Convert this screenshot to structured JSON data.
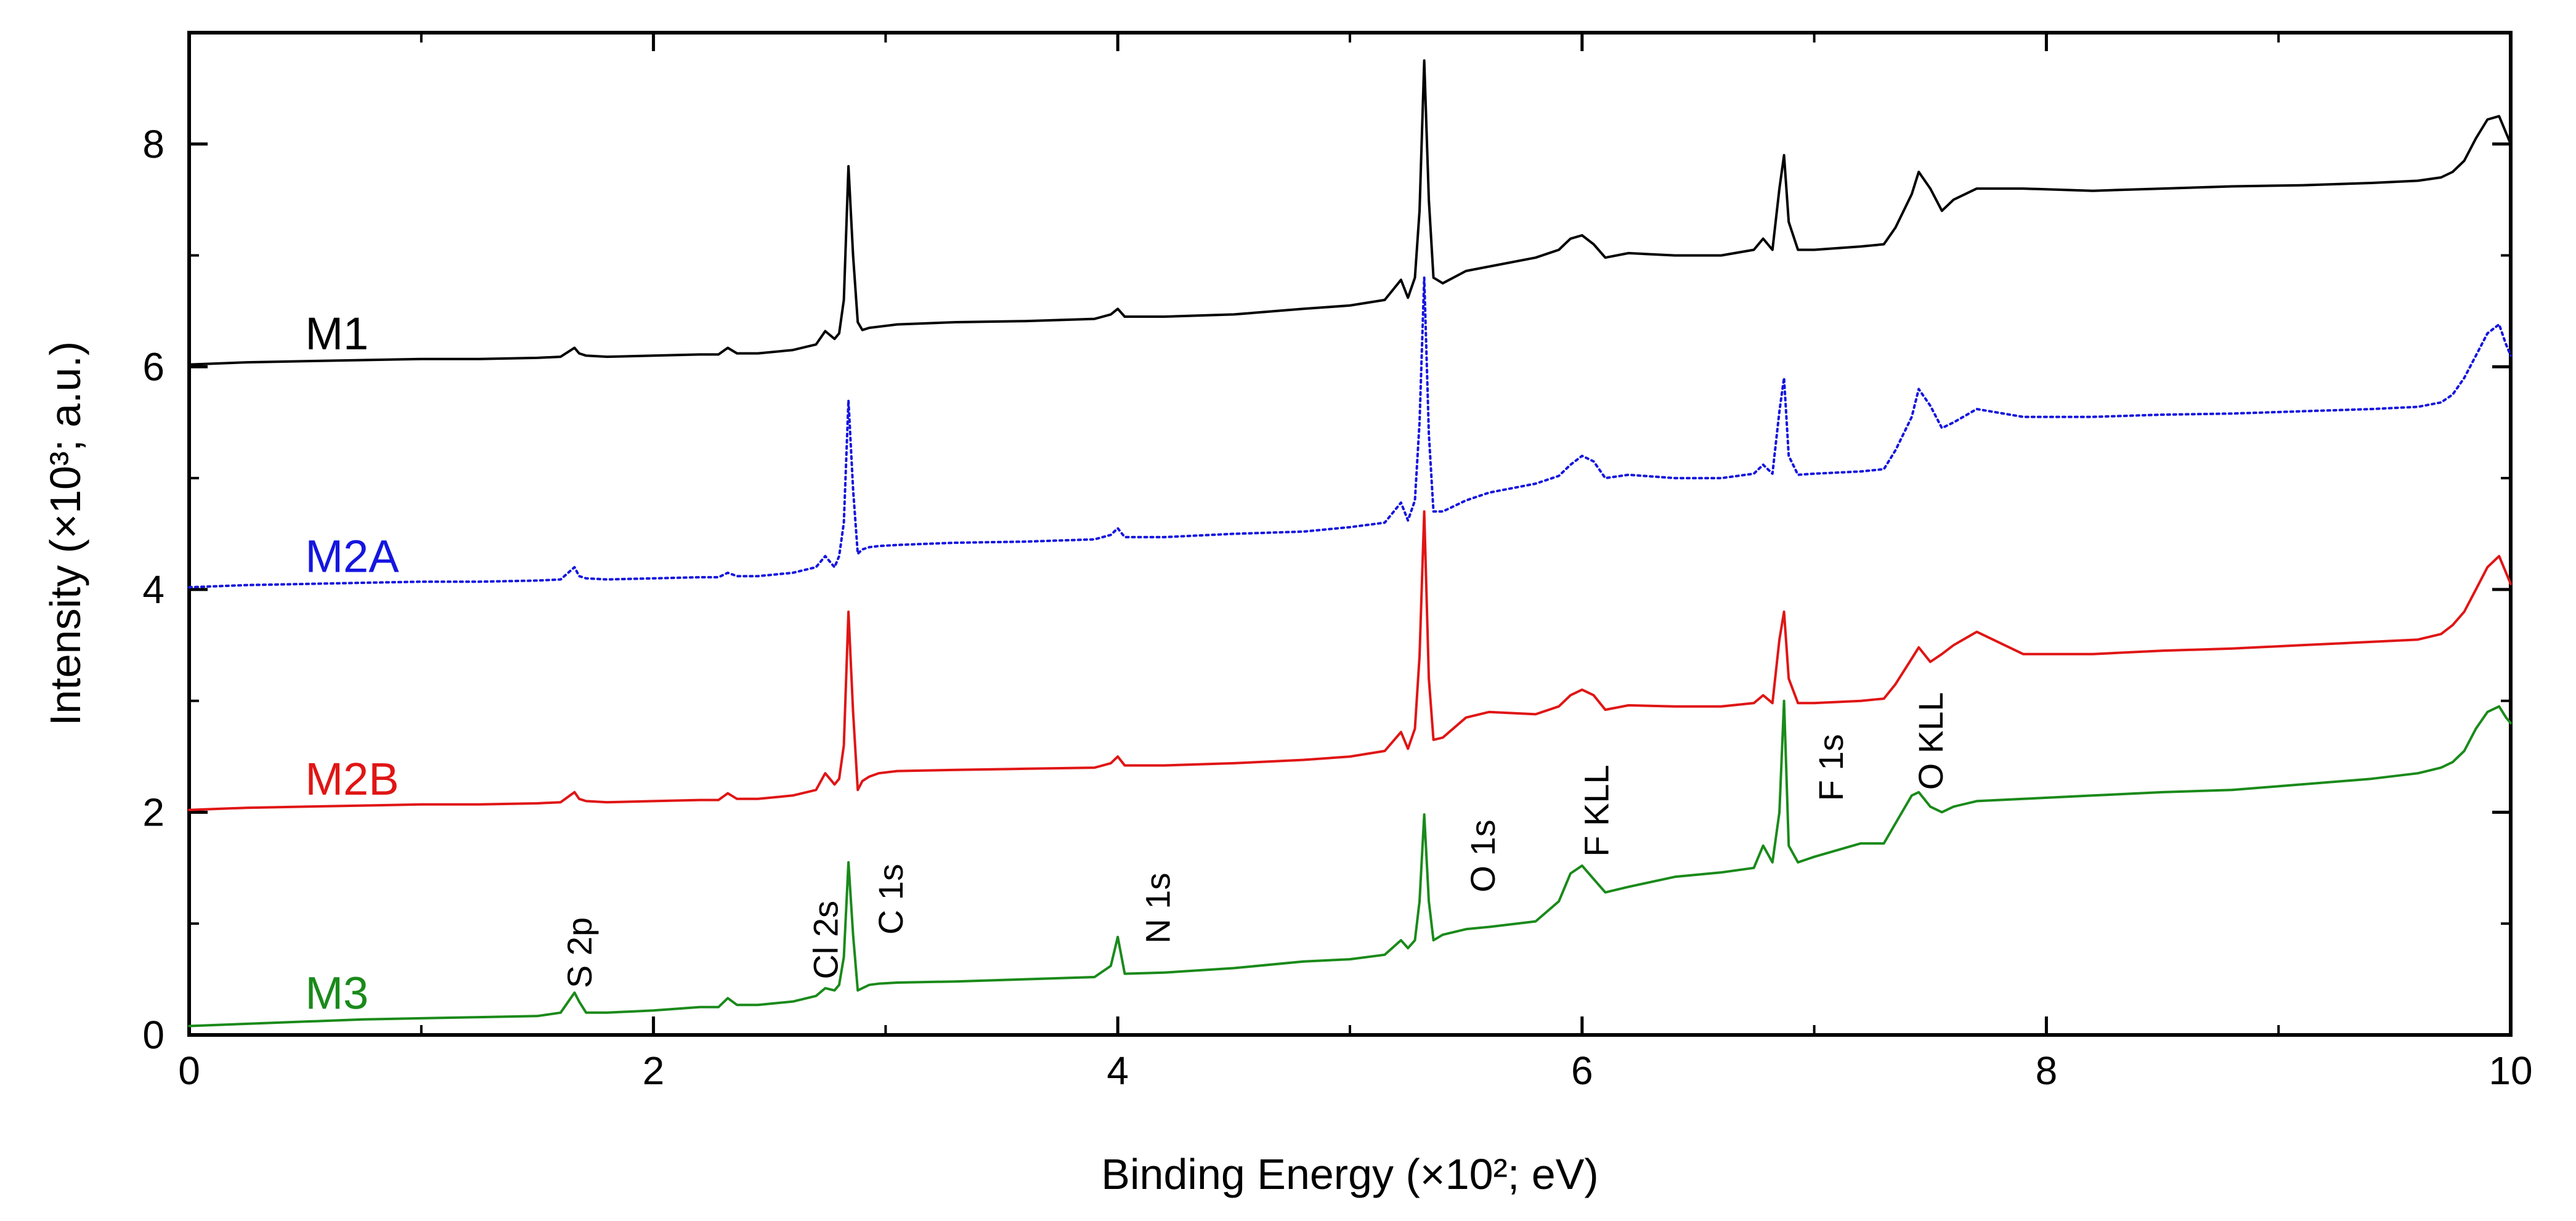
{
  "chart_data": {
    "type": "line",
    "xlabel": "Binding Energy (×10²; eV)",
    "ylabel": "Intensity (×10³; a.u.)",
    "xlim": [
      0,
      10
    ],
    "ylim": [
      0,
      9
    ],
    "xticks": [
      0,
      2,
      4,
      6,
      8,
      10
    ],
    "yticks": [
      0,
      2,
      4,
      6,
      8
    ],
    "grid": false,
    "series": [
      {
        "name": "M1",
        "color": "#000000",
        "style": "solid",
        "label_at": [
          0.5,
          6.3
        ],
        "x": [
          0.0,
          0.25,
          0.5,
          0.75,
          1.0,
          1.25,
          1.5,
          1.6,
          1.66,
          1.68,
          1.71,
          1.8,
          2.0,
          2.2,
          2.28,
          2.32,
          2.36,
          2.45,
          2.6,
          2.7,
          2.74,
          2.78,
          2.8,
          2.82,
          2.84,
          2.86,
          2.88,
          2.9,
          2.93,
          2.97,
          3.05,
          3.3,
          3.6,
          3.9,
          3.97,
          4.0,
          4.03,
          4.2,
          4.5,
          4.8,
          5.0,
          5.15,
          5.22,
          5.25,
          5.28,
          5.3,
          5.32,
          5.34,
          5.36,
          5.4,
          5.5,
          5.6,
          5.8,
          5.9,
          5.95,
          6.0,
          6.05,
          6.1,
          6.2,
          6.4,
          6.6,
          6.74,
          6.78,
          6.82,
          6.85,
          6.87,
          6.89,
          6.93,
          7.0,
          7.2,
          7.3,
          7.35,
          7.42,
          7.45,
          7.5,
          7.55,
          7.6,
          7.7,
          7.9,
          8.2,
          8.5,
          8.8,
          9.1,
          9.4,
          9.6,
          9.7,
          9.75,
          9.8,
          9.85,
          9.9,
          9.95,
          9.98,
          10.0
        ],
        "y": [
          6.02,
          6.04,
          6.05,
          6.06,
          6.07,
          6.07,
          6.08,
          6.09,
          6.17,
          6.12,
          6.1,
          6.09,
          6.1,
          6.11,
          6.11,
          6.17,
          6.12,
          6.12,
          6.15,
          6.2,
          6.32,
          6.25,
          6.3,
          6.6,
          7.8,
          7.0,
          6.4,
          6.33,
          6.35,
          6.36,
          6.38,
          6.4,
          6.41,
          6.43,
          6.47,
          6.52,
          6.45,
          6.45,
          6.47,
          6.52,
          6.55,
          6.6,
          6.78,
          6.62,
          6.8,
          7.4,
          8.75,
          7.5,
          6.8,
          6.75,
          6.86,
          6.9,
          6.98,
          7.05,
          7.15,
          7.18,
          7.1,
          6.98,
          7.02,
          7.0,
          7.0,
          7.05,
          7.15,
          7.05,
          7.6,
          7.9,
          7.3,
          7.05,
          7.05,
          7.08,
          7.1,
          7.25,
          7.55,
          7.75,
          7.6,
          7.4,
          7.5,
          7.6,
          7.6,
          7.58,
          7.6,
          7.62,
          7.63,
          7.65,
          7.67,
          7.7,
          7.75,
          7.85,
          8.05,
          8.22,
          8.25,
          8.1,
          8.0
        ]
      },
      {
        "name": "M2A",
        "color": "#1515e0",
        "style": "dotted",
        "label_at": [
          0.5,
          4.3
        ],
        "x": [
          0.0,
          0.25,
          0.5,
          0.75,
          1.0,
          1.25,
          1.5,
          1.6,
          1.66,
          1.68,
          1.71,
          1.8,
          2.0,
          2.2,
          2.28,
          2.32,
          2.36,
          2.45,
          2.6,
          2.7,
          2.74,
          2.78,
          2.8,
          2.82,
          2.84,
          2.86,
          2.88,
          2.9,
          2.93,
          2.97,
          3.05,
          3.3,
          3.6,
          3.9,
          3.97,
          4.0,
          4.03,
          4.2,
          4.5,
          4.8,
          5.0,
          5.15,
          5.22,
          5.25,
          5.28,
          5.3,
          5.32,
          5.34,
          5.36,
          5.4,
          5.5,
          5.6,
          5.8,
          5.9,
          5.95,
          6.0,
          6.05,
          6.1,
          6.2,
          6.4,
          6.6,
          6.74,
          6.78,
          6.82,
          6.85,
          6.87,
          6.89,
          6.93,
          7.0,
          7.2,
          7.3,
          7.35,
          7.42,
          7.45,
          7.5,
          7.55,
          7.6,
          7.7,
          7.9,
          8.2,
          8.5,
          8.8,
          9.1,
          9.4,
          9.6,
          9.7,
          9.75,
          9.8,
          9.85,
          9.9,
          9.95,
          9.98,
          10.0
        ],
        "y": [
          4.02,
          4.04,
          4.05,
          4.06,
          4.07,
          4.07,
          4.08,
          4.09,
          4.2,
          4.12,
          4.1,
          4.09,
          4.1,
          4.11,
          4.11,
          4.15,
          4.12,
          4.12,
          4.15,
          4.2,
          4.3,
          4.2,
          4.3,
          4.6,
          5.7,
          4.9,
          4.32,
          4.36,
          4.38,
          4.39,
          4.4,
          4.42,
          4.43,
          4.45,
          4.49,
          4.55,
          4.47,
          4.47,
          4.5,
          4.52,
          4.56,
          4.6,
          4.78,
          4.62,
          4.8,
          5.5,
          6.8,
          5.4,
          4.7,
          4.7,
          4.8,
          4.87,
          4.95,
          5.02,
          5.12,
          5.2,
          5.15,
          5.0,
          5.03,
          5.0,
          5.0,
          5.04,
          5.12,
          5.04,
          5.6,
          5.9,
          5.2,
          5.03,
          5.04,
          5.06,
          5.08,
          5.25,
          5.55,
          5.8,
          5.65,
          5.45,
          5.5,
          5.62,
          5.55,
          5.55,
          5.57,
          5.58,
          5.6,
          5.62,
          5.64,
          5.68,
          5.75,
          5.9,
          6.1,
          6.3,
          6.38,
          6.2,
          6.1
        ]
      },
      {
        "name": "M2B",
        "color": "#e01515",
        "style": "solid",
        "label_at": [
          0.5,
          2.3
        ],
        "x": [
          0.0,
          0.25,
          0.5,
          0.75,
          1.0,
          1.25,
          1.5,
          1.6,
          1.66,
          1.68,
          1.71,
          1.8,
          2.0,
          2.2,
          2.28,
          2.32,
          2.36,
          2.45,
          2.6,
          2.7,
          2.74,
          2.78,
          2.8,
          2.82,
          2.84,
          2.86,
          2.88,
          2.9,
          2.93,
          2.97,
          3.05,
          3.3,
          3.6,
          3.9,
          3.97,
          4.0,
          4.03,
          4.2,
          4.5,
          4.8,
          5.0,
          5.15,
          5.22,
          5.25,
          5.28,
          5.3,
          5.32,
          5.34,
          5.36,
          5.4,
          5.5,
          5.6,
          5.8,
          5.9,
          5.95,
          6.0,
          6.05,
          6.1,
          6.2,
          6.4,
          6.6,
          6.74,
          6.78,
          6.82,
          6.85,
          6.87,
          6.89,
          6.93,
          7.0,
          7.2,
          7.3,
          7.35,
          7.42,
          7.45,
          7.5,
          7.55,
          7.6,
          7.7,
          7.9,
          8.2,
          8.5,
          8.8,
          9.1,
          9.4,
          9.6,
          9.7,
          9.75,
          9.8,
          9.85,
          9.9,
          9.95,
          9.98,
          10.0
        ],
        "y": [
          2.02,
          2.04,
          2.05,
          2.06,
          2.07,
          2.07,
          2.08,
          2.09,
          2.18,
          2.12,
          2.1,
          2.09,
          2.1,
          2.11,
          2.11,
          2.17,
          2.12,
          2.12,
          2.15,
          2.2,
          2.35,
          2.25,
          2.3,
          2.6,
          3.8,
          2.9,
          2.2,
          2.28,
          2.32,
          2.35,
          2.37,
          2.38,
          2.39,
          2.4,
          2.44,
          2.5,
          2.42,
          2.42,
          2.44,
          2.47,
          2.5,
          2.55,
          2.72,
          2.57,
          2.75,
          3.4,
          4.7,
          3.2,
          2.65,
          2.67,
          2.85,
          2.9,
          2.88,
          2.95,
          3.05,
          3.1,
          3.05,
          2.92,
          2.96,
          2.95,
          2.95,
          2.98,
          3.05,
          2.98,
          3.55,
          3.8,
          3.2,
          2.98,
          2.98,
          3.0,
          3.02,
          3.15,
          3.38,
          3.48,
          3.35,
          3.42,
          3.5,
          3.62,
          3.42,
          3.42,
          3.45,
          3.47,
          3.5,
          3.53,
          3.55,
          3.6,
          3.68,
          3.8,
          4.0,
          4.2,
          4.3,
          4.15,
          4.05
        ]
      },
      {
        "name": "M3",
        "color": "#1a8a1a",
        "style": "solid",
        "label_at": [
          0.5,
          0.38
        ],
        "x": [
          0.0,
          0.25,
          0.5,
          0.75,
          1.0,
          1.25,
          1.5,
          1.6,
          1.66,
          1.68,
          1.71,
          1.8,
          2.0,
          2.2,
          2.28,
          2.32,
          2.36,
          2.45,
          2.6,
          2.7,
          2.74,
          2.78,
          2.8,
          2.82,
          2.84,
          2.86,
          2.88,
          2.9,
          2.93,
          2.97,
          3.05,
          3.3,
          3.6,
          3.9,
          3.97,
          4.0,
          4.03,
          4.2,
          4.5,
          4.8,
          5.0,
          5.15,
          5.22,
          5.25,
          5.28,
          5.3,
          5.32,
          5.34,
          5.36,
          5.4,
          5.5,
          5.6,
          5.8,
          5.9,
          5.95,
          6.0,
          6.05,
          6.1,
          6.2,
          6.4,
          6.6,
          6.74,
          6.78,
          6.82,
          6.85,
          6.87,
          6.89,
          6.93,
          7.0,
          7.2,
          7.3,
          7.35,
          7.42,
          7.45,
          7.5,
          7.55,
          7.6,
          7.7,
          7.9,
          8.2,
          8.5,
          8.8,
          9.1,
          9.4,
          9.6,
          9.7,
          9.75,
          9.8,
          9.85,
          9.9,
          9.95,
          9.98,
          10.0
        ],
        "y": [
          0.08,
          0.1,
          0.12,
          0.14,
          0.15,
          0.16,
          0.17,
          0.2,
          0.38,
          0.3,
          0.2,
          0.2,
          0.22,
          0.25,
          0.25,
          0.33,
          0.27,
          0.27,
          0.3,
          0.35,
          0.42,
          0.4,
          0.45,
          0.7,
          1.55,
          0.9,
          0.4,
          0.42,
          0.45,
          0.46,
          0.47,
          0.48,
          0.5,
          0.52,
          0.62,
          0.88,
          0.55,
          0.56,
          0.6,
          0.66,
          0.68,
          0.72,
          0.85,
          0.78,
          0.85,
          1.2,
          1.98,
          1.2,
          0.85,
          0.9,
          0.95,
          0.97,
          1.02,
          1.2,
          1.45,
          1.52,
          1.4,
          1.28,
          1.33,
          1.42,
          1.46,
          1.5,
          1.7,
          1.55,
          2.0,
          3.0,
          1.7,
          1.55,
          1.6,
          1.72,
          1.72,
          1.9,
          2.15,
          2.18,
          2.05,
          2.0,
          2.05,
          2.1,
          2.12,
          2.15,
          2.18,
          2.2,
          2.25,
          2.3,
          2.35,
          2.4,
          2.45,
          2.55,
          2.75,
          2.9,
          2.95,
          2.85,
          2.8
        ]
      }
    ],
    "annotations": [
      {
        "text": "S 2p",
        "x": 1.68,
        "y": 0.42
      },
      {
        "text": "Cl 2s",
        "x": 2.74,
        "y": 0.5
      },
      {
        "text": "C 1s",
        "x": 3.02,
        "y": 0.9
      },
      {
        "text": "N 1s",
        "x": 4.17,
        "y": 0.82
      },
      {
        "text": "O 1s",
        "x": 5.57,
        "y": 1.28
      },
      {
        "text": "F KLL",
        "x": 6.06,
        "y": 1.6
      },
      {
        "text": "F 1s",
        "x": 7.07,
        "y": 2.1
      },
      {
        "text": "O KLL",
        "x": 7.5,
        "y": 2.2
      }
    ]
  }
}
